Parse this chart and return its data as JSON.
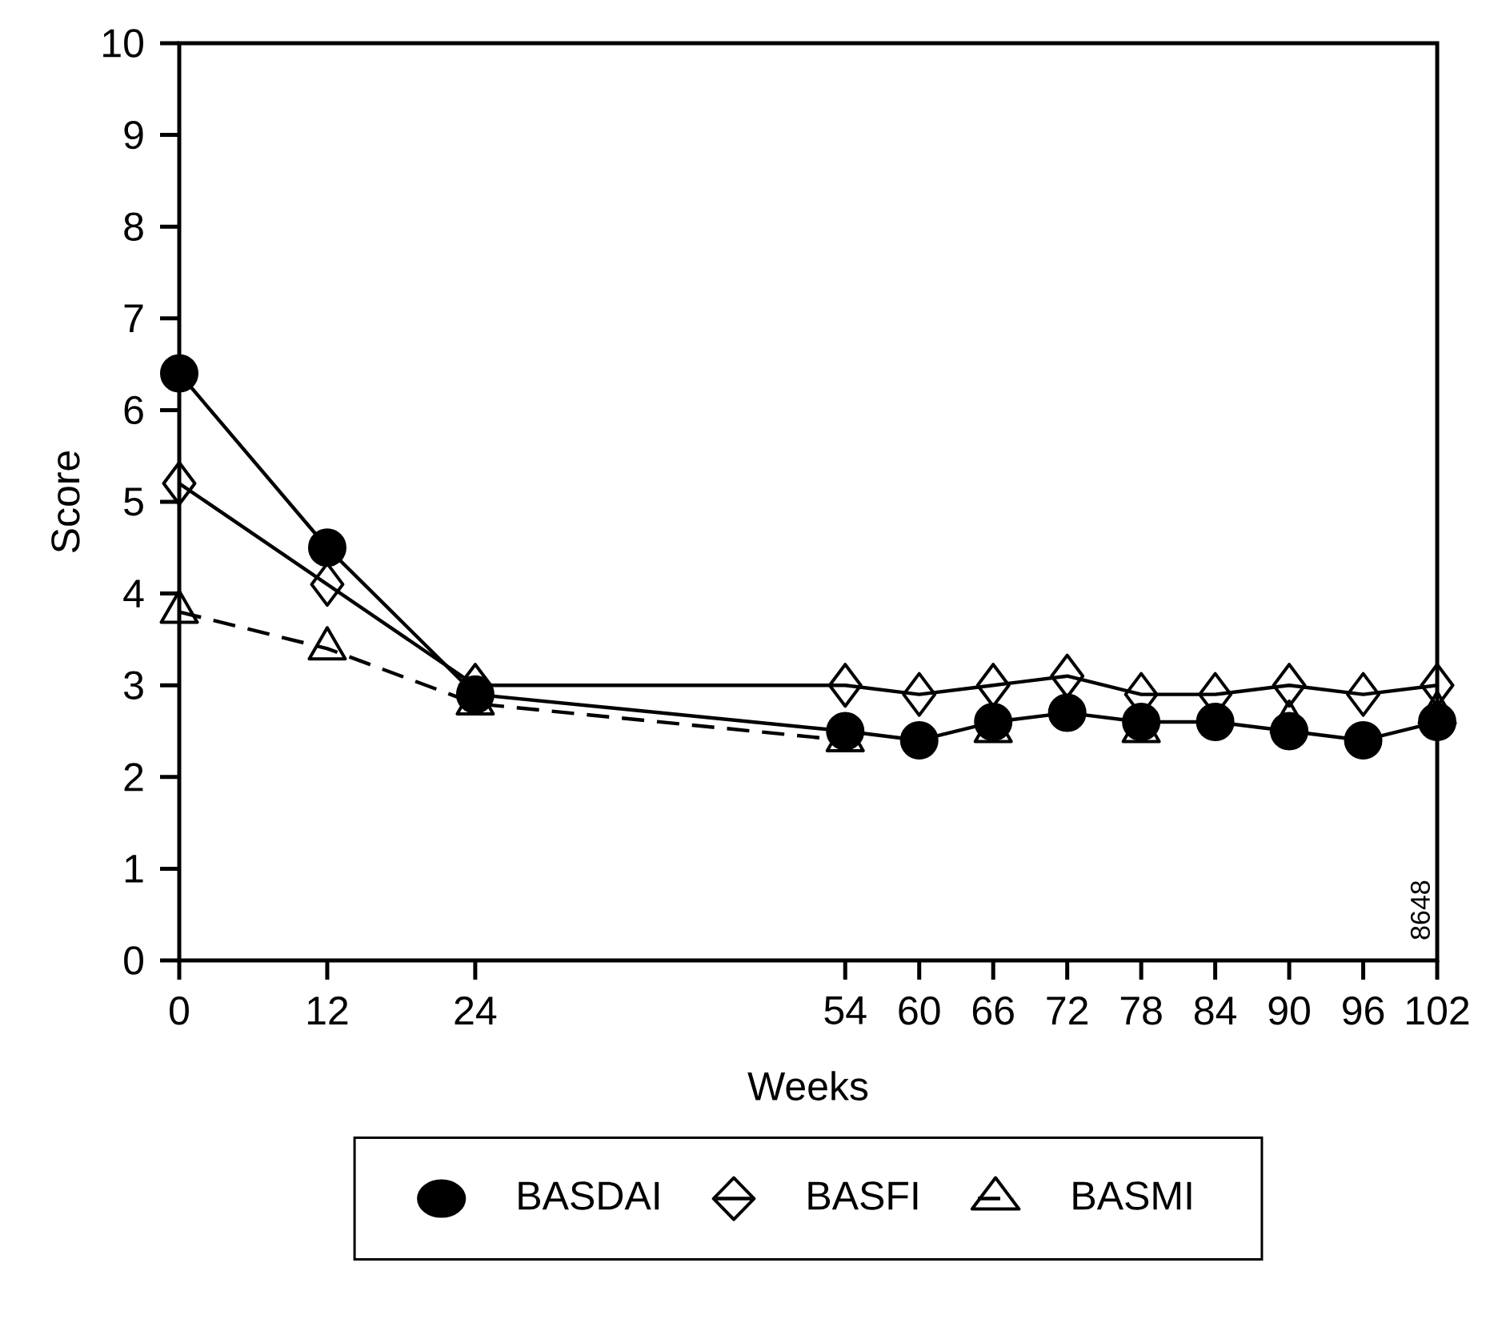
{
  "chart_data": {
    "type": "line",
    "xlabel": "Weeks",
    "ylabel": "Score",
    "x": [
      0,
      12,
      24,
      54,
      60,
      66,
      72,
      78,
      84,
      90,
      96,
      102
    ],
    "series": [
      {
        "name": "BASDAI",
        "color": "#000000",
        "marker": "circle",
        "line_style": "solid",
        "values": [
          6.4,
          4.5,
          2.9,
          2.5,
          2.4,
          2.6,
          2.7,
          2.6,
          2.6,
          2.5,
          2.4,
          2.6
        ]
      },
      {
        "name": "BASFI",
        "color": "#000000",
        "marker": "diamond",
        "line_style": "solid",
        "values": [
          5.2,
          4.1,
          3.0,
          3.0,
          2.9,
          3.0,
          3.1,
          2.9,
          2.9,
          3.0,
          2.9,
          3.0
        ]
      },
      {
        "name": "BASMI",
        "color": "#000000",
        "marker": "triangle",
        "line_style": "dashed",
        "values": [
          3.8,
          3.4,
          2.8,
          2.4,
          null,
          2.5,
          null,
          2.5,
          null,
          2.6,
          null,
          2.7
        ]
      }
    ],
    "xlim": [
      0,
      102
    ],
    "ylim": [
      0,
      10
    ],
    "xticks": [
      0,
      12,
      24,
      54,
      60,
      66,
      72,
      78,
      84,
      90,
      96,
      102
    ],
    "yticks": [
      0,
      1,
      2,
      3,
      4,
      5,
      6,
      7,
      8,
      9,
      10
    ],
    "legend": "bottom",
    "annotations": [
      "8648"
    ]
  }
}
